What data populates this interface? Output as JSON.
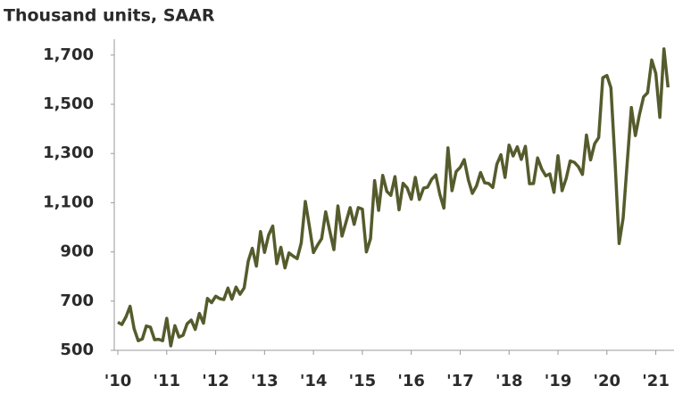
{
  "chart_data": {
    "type": "line",
    "title": "Thousand units, SAAR",
    "x": [
      2010,
      2010.083,
      2010.167,
      2010.25,
      2010.333,
      2010.417,
      2010.5,
      2010.583,
      2010.667,
      2010.75,
      2010.833,
      2010.917,
      2011,
      2011.083,
      2011.167,
      2011.25,
      2011.333,
      2011.417,
      2011.5,
      2011.583,
      2011.667,
      2011.75,
      2011.833,
      2011.917,
      2012,
      2012.083,
      2012.167,
      2012.25,
      2012.333,
      2012.417,
      2012.5,
      2012.583,
      2012.667,
      2012.75,
      2012.833,
      2012.917,
      2013,
      2013.083,
      2013.167,
      2013.25,
      2013.333,
      2013.417,
      2013.5,
      2013.583,
      2013.667,
      2013.75,
      2013.833,
      2013.917,
      2014,
      2014.083,
      2014.167,
      2014.25,
      2014.333,
      2014.417,
      2014.5,
      2014.583,
      2014.667,
      2014.75,
      2014.833,
      2014.917,
      2015,
      2015.083,
      2015.167,
      2015.25,
      2015.333,
      2015.417,
      2015.5,
      2015.583,
      2015.667,
      2015.75,
      2015.833,
      2015.917,
      2016,
      2016.083,
      2016.167,
      2016.25,
      2016.333,
      2016.417,
      2016.5,
      2016.583,
      2016.667,
      2016.75,
      2016.833,
      2016.917,
      2017,
      2017.083,
      2017.167,
      2017.25,
      2017.333,
      2017.417,
      2017.5,
      2017.583,
      2017.667,
      2017.75,
      2017.833,
      2017.917,
      2018,
      2018.083,
      2018.167,
      2018.25,
      2018.333,
      2018.417,
      2018.5,
      2018.583,
      2018.667,
      2018.75,
      2018.833,
      2018.917,
      2019,
      2019.083,
      2019.167,
      2019.25,
      2019.333,
      2019.417,
      2019.5,
      2019.583,
      2019.667,
      2019.75,
      2019.833,
      2019.917,
      2020,
      2020.083,
      2020.167,
      2020.25,
      2020.333,
      2020.417,
      2020.5,
      2020.583,
      2020.667,
      2020.75,
      2020.833,
      2020.917,
      2021,
      2021.083,
      2021.167,
      2021.25
    ],
    "series": [
      {
        "color": "#555b2c",
        "values": [
          614,
          605,
          636,
          679,
          588,
          539,
          546,
          599,
          594,
          543,
          545,
          539,
          630,
          518,
          600,
          554,
          561,
          608,
          623,
          585,
          650,
          610,
          711,
          694,
          720,
          710,
          706,
          753,
          708,
          757,
          728,
          754,
          863,
          915,
          842,
          983,
          898,
          969,
          1005,
          852,
          919,
          835,
          896,
          883,
          873,
          936,
          1105,
          1003,
          897,
          928,
          954,
          1063,
          985,
          909,
          1087,
          964,
          1022,
          1080,
          1012,
          1080,
          1074,
          900,
          954,
          1190,
          1069,
          1211,
          1146,
          1130,
          1206,
          1071,
          1179,
          1160,
          1114,
          1203,
          1113,
          1159,
          1163,
          1195,
          1213,
          1135,
          1078,
          1323,
          1149,
          1226,
          1244,
          1275,
          1193,
          1138,
          1168,
          1223,
          1181,
          1178,
          1162,
          1256,
          1295,
          1203,
          1334,
          1290,
          1327,
          1276,
          1329,
          1177,
          1178,
          1282,
          1237,
          1209,
          1217,
          1142,
          1291,
          1149,
          1199,
          1270,
          1264,
          1246,
          1215,
          1375,
          1274,
          1340,
          1365,
          1608,
          1617,
          1567,
          1269,
          934,
          1038,
          1265,
          1487,
          1373,
          1459,
          1530,
          1547,
          1680,
          1625,
          1447,
          1725,
          1569
        ]
      }
    ],
    "xlim": [
      2010,
      2021.3
    ],
    "xticks": [
      {
        "value": 2010,
        "label": "'10"
      },
      {
        "value": 2011,
        "label": "'11"
      },
      {
        "value": 2012,
        "label": "'12"
      },
      {
        "value": 2013,
        "label": "'13"
      },
      {
        "value": 2014,
        "label": "'14"
      },
      {
        "value": 2015,
        "label": "'15"
      },
      {
        "value": 2016,
        "label": "'16"
      },
      {
        "value": 2017,
        "label": "'17"
      },
      {
        "value": 2018,
        "label": "'18"
      },
      {
        "value": 2019,
        "label": "'19"
      },
      {
        "value": 2020,
        "label": "'20"
      },
      {
        "value": 2021,
        "label": "'21"
      }
    ],
    "ylim": [
      500,
      1750
    ],
    "yticks": [
      500,
      {
        "value": 700,
        "label": "700"
      },
      {
        "value": 900,
        "label": "900"
      },
      {
        "value": 1100,
        "label": "1,100"
      },
      {
        "value": 1300,
        "label": "1,300"
      },
      {
        "value": 1500,
        "label": "1,500"
      },
      {
        "value": 1700,
        "label": "1,700"
      }
    ],
    "grid": false
  }
}
